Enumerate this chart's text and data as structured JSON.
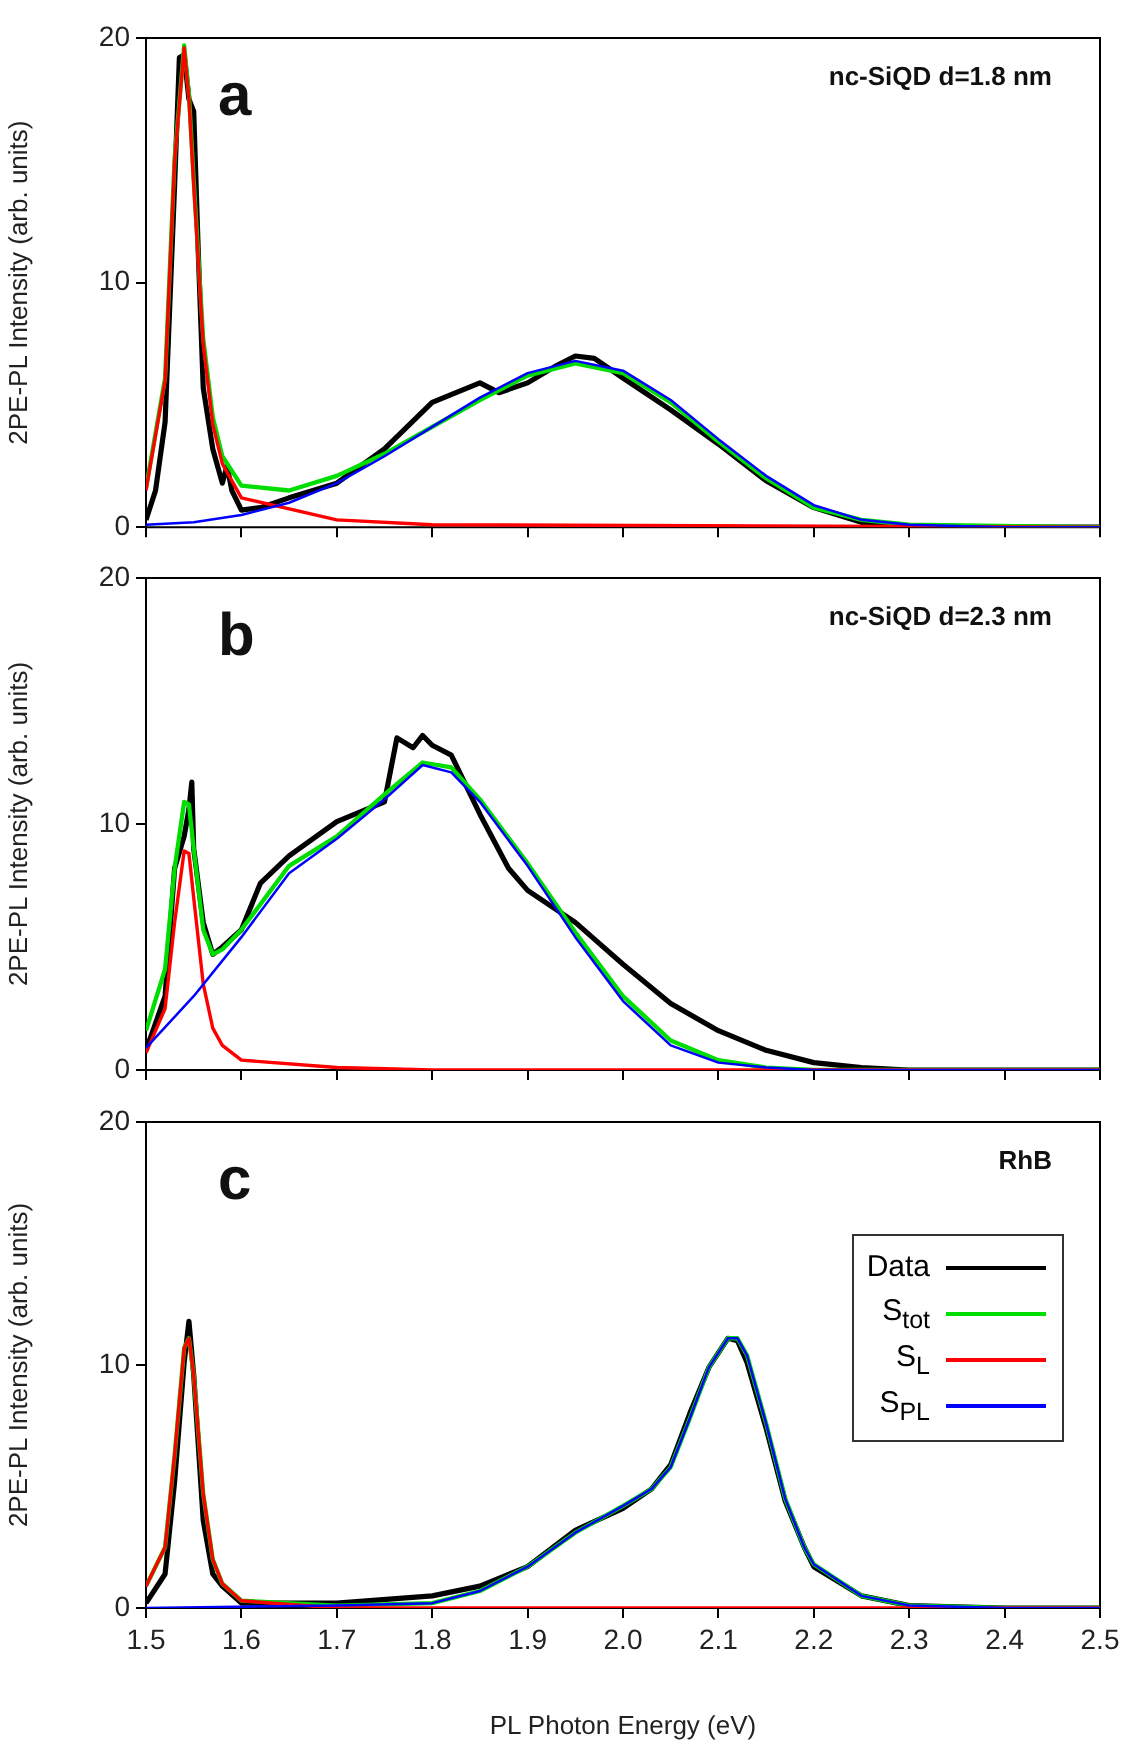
{
  "chart_data": [
    {
      "type": "line",
      "ylabel": "2PE-PL Intensity (arb. units)",
      "annotations": [
        "a",
        "nc-SiQD d=1.8 nm"
      ],
      "xlim": [
        1.5,
        2.5
      ],
      "ylim": [
        0,
        20
      ],
      "yticks": [
        0,
        10,
        20
      ],
      "xticks": [
        1.5,
        1.6,
        1.7,
        1.8,
        1.9,
        2,
        2.1,
        2.2,
        2.3,
        2.4,
        2.5
      ],
      "tick_labels": "y",
      "series": [
        {
          "color": "#000000",
          "x": [
            1.5,
            1.51,
            1.52,
            1.53,
            1.535,
            1.54,
            1.545,
            1.55,
            1.555,
            1.56,
            1.57,
            1.58,
            1.585,
            1.59,
            1.6,
            1.62,
            1.65,
            1.7,
            1.75,
            1.8,
            1.85,
            1.87,
            1.9,
            1.93,
            1.95,
            1.97,
            2.0,
            2.05,
            2.1,
            2.15,
            2.2,
            2.25,
            2.3,
            2.5
          ],
          "values": [
            0.3,
            1.5,
            4.3,
            14,
            19.2,
            19.3,
            17.5,
            17,
            11,
            5.7,
            3.2,
            1.8,
            2.5,
            1.5,
            0.7,
            0.8,
            1.2,
            1.8,
            3.2,
            5.1,
            5.9,
            5.5,
            5.9,
            6.6,
            7.0,
            6.9,
            6.1,
            4.8,
            3.4,
            1.9,
            0.8,
            0.2,
            0,
            0
          ]
        },
        {
          "color": "#00dd00",
          "x": [
            1.5,
            1.52,
            1.53,
            1.54,
            1.545,
            1.55,
            1.56,
            1.57,
            1.58,
            1.6,
            1.65,
            1.7,
            1.75,
            1.8,
            1.85,
            1.9,
            1.95,
            2.0,
            2.05,
            2.1,
            2.15,
            2.2,
            2.25,
            2.3,
            2.5
          ],
          "values": [
            1.6,
            6.1,
            15.1,
            19.7,
            17.7,
            14.2,
            7.7,
            4.5,
            2.9,
            1.7,
            1.5,
            2.1,
            3.0,
            4.1,
            5.2,
            6.2,
            6.7,
            6.3,
            5.1,
            3.5,
            2.0,
            0.8,
            0.3,
            0.1,
            0
          ]
        },
        {
          "color": "#ff0000",
          "x": [
            1.5,
            1.52,
            1.53,
            1.54,
            1.545,
            1.55,
            1.56,
            1.57,
            1.58,
            1.6,
            1.7,
            1.8,
            2.5
          ],
          "values": [
            1.5,
            6,
            15,
            19.6,
            17.5,
            14,
            7.5,
            4.2,
            2.6,
            1.2,
            0.3,
            0.1,
            0
          ]
        },
        {
          "color": "#0000ff",
          "x": [
            1.5,
            1.55,
            1.6,
            1.65,
            1.7,
            1.75,
            1.8,
            1.85,
            1.9,
            1.95,
            2.0,
            2.05,
            2.1,
            2.15,
            2.2,
            2.25,
            2.3,
            2.4,
            2.5
          ],
          "values": [
            0.1,
            0.2,
            0.5,
            1.0,
            1.8,
            2.9,
            4.1,
            5.3,
            6.3,
            6.8,
            6.4,
            5.2,
            3.6,
            2.1,
            0.9,
            0.3,
            0.1,
            0,
            0
          ]
        }
      ]
    },
    {
      "type": "line",
      "ylabel": "2PE-PL Intensity (arb. units)",
      "annotations": [
        "b",
        "nc-SiQD d=2.3 nm"
      ],
      "xlim": [
        1.5,
        2.5
      ],
      "ylim": [
        0,
        20
      ],
      "yticks": [
        0,
        10,
        20
      ],
      "xticks": [
        1.5,
        1.6,
        1.7,
        1.8,
        1.9,
        2,
        2.1,
        2.2,
        2.3,
        2.4,
        2.5
      ],
      "tick_labels": "y",
      "series": [
        {
          "color": "#000000",
          "x": [
            1.5,
            1.52,
            1.53,
            1.54,
            1.545,
            1.548,
            1.55,
            1.56,
            1.57,
            1.58,
            1.6,
            1.62,
            1.65,
            1.7,
            1.75,
            1.763,
            1.78,
            1.79,
            1.8,
            1.82,
            1.85,
            1.88,
            1.9,
            1.95,
            2.0,
            2.05,
            2.1,
            2.15,
            2.2,
            2.25,
            2.3,
            2.5
          ],
          "values": [
            0.8,
            3,
            8.2,
            9.5,
            10.6,
            11.7,
            9,
            6,
            4.7,
            5.0,
            5.7,
            7.6,
            8.7,
            10.1,
            10.9,
            13.5,
            13.1,
            13.6,
            13.2,
            12.8,
            10.4,
            8.2,
            7.3,
            6.0,
            4.3,
            2.7,
            1.6,
            0.8,
            0.3,
            0.1,
            0,
            0
          ]
        },
        {
          "color": "#00dd00",
          "x": [
            1.5,
            1.52,
            1.53,
            1.54,
            1.545,
            1.55,
            1.56,
            1.57,
            1.58,
            1.6,
            1.65,
            1.7,
            1.75,
            1.79,
            1.82,
            1.85,
            1.9,
            1.95,
            2.0,
            2.05,
            2.1,
            2.15,
            2.2,
            2.5
          ],
          "values": [
            1.6,
            4.1,
            8.2,
            10.9,
            10.8,
            9,
            5.7,
            4.7,
            4.9,
            5.7,
            8.3,
            9.5,
            11.2,
            12.5,
            12.3,
            11.0,
            8.4,
            5.6,
            3.0,
            1.2,
            0.4,
            0.1,
            0,
            0
          ]
        },
        {
          "color": "#ff0000",
          "x": [
            1.5,
            1.52,
            1.53,
            1.54,
            1.545,
            1.55,
            1.56,
            1.57,
            1.58,
            1.6,
            1.7,
            1.8,
            2.5
          ],
          "values": [
            0.7,
            2.5,
            6,
            8.9,
            8.8,
            7,
            3.5,
            1.7,
            1.0,
            0.4,
            0.1,
            0,
            0
          ]
        },
        {
          "color": "#0000ff",
          "x": [
            1.5,
            1.55,
            1.6,
            1.65,
            1.7,
            1.75,
            1.79,
            1.82,
            1.85,
            1.9,
            1.95,
            2.0,
            2.05,
            2.1,
            2.15,
            2.2,
            2.5
          ],
          "values": [
            0.9,
            3,
            5.4,
            8.0,
            9.4,
            11.0,
            12.4,
            12.1,
            10.9,
            8.3,
            5.4,
            2.8,
            1.0,
            0.3,
            0.1,
            0,
            0
          ]
        }
      ]
    },
    {
      "type": "line",
      "xlabel": "PL Photon Energy (eV)",
      "ylabel": "2PE-PL Intensity (arb. units)",
      "annotations": [
        "c",
        "RhB"
      ],
      "xlim": [
        1.5,
        2.5
      ],
      "ylim": [
        0,
        20
      ],
      "yticks": [
        0,
        10,
        20
      ],
      "xticks": [
        1.5,
        1.6,
        1.7,
        1.8,
        1.9,
        {
          "value": 2.0,
          "label": "2.0"
        },
        2.1,
        2.2,
        2.3,
        2.4,
        2.5
      ],
      "legend": "top right",
      "series": [
        {
          "name": "Data",
          "color": "#000000",
          "x": [
            1.5,
            1.52,
            1.53,
            1.54,
            1.545,
            1.55,
            1.56,
            1.57,
            1.58,
            1.6,
            1.7,
            1.8,
            1.85,
            1.9,
            1.95,
            2.0,
            2.03,
            2.05,
            2.07,
            2.09,
            2.11,
            2.12,
            2.13,
            2.15,
            2.17,
            2.19,
            2.2,
            2.25,
            2.3,
            2.4,
            2.5
          ],
          "values": [
            0.2,
            1.4,
            5.2,
            10.1,
            11.8,
            9.6,
            3.6,
            1.4,
            0.9,
            0.2,
            0.2,
            0.5,
            0.9,
            1.7,
            3.2,
            4.1,
            4.9,
            5.9,
            8.0,
            9.9,
            11.1,
            11.0,
            10.1,
            7.4,
            4.4,
            2.5,
            1.7,
            0.5,
            0.1,
            0,
            0
          ]
        },
        {
          "name": "S$_{tot}$",
          "color": "#00dd00",
          "x": [
            1.5,
            1.52,
            1.53,
            1.54,
            1.545,
            1.55,
            1.56,
            1.57,
            1.58,
            1.6,
            1.7,
            1.8,
            1.85,
            1.9,
            1.95,
            2.0,
            2.03,
            2.05,
            2.07,
            2.09,
            2.11,
            2.12,
            2.13,
            2.15,
            2.17,
            2.19,
            2.2,
            2.25,
            2.3,
            2.4,
            2.5
          ],
          "values": [
            0.9,
            2.5,
            6.3,
            10.7,
            11.1,
            9.6,
            4.7,
            2.0,
            1.0,
            0.3,
            0.1,
            0.2,
            0.7,
            1.7,
            3.1,
            4.2,
            4.9,
            5.8,
            7.8,
            9.9,
            11.1,
            11.1,
            10.4,
            7.6,
            4.5,
            2.5,
            1.8,
            0.5,
            0.1,
            0,
            0
          ]
        },
        {
          "name": "S$_{L}$",
          "color": "#ff0000",
          "x": [
            1.5,
            1.52,
            1.53,
            1.54,
            1.545,
            1.55,
            1.56,
            1.57,
            1.58,
            1.6,
            1.7,
            1.8,
            2.5
          ],
          "values": [
            0.9,
            2.5,
            6.3,
            10.7,
            11.1,
            9.6,
            4.7,
            2.0,
            1.0,
            0.3,
            0,
            0,
            0
          ]
        },
        {
          "name": "S$_{PL}$",
          "color": "#0000ff",
          "x": [
            1.5,
            1.7,
            1.8,
            1.85,
            1.9,
            1.95,
            2.0,
            2.03,
            2.05,
            2.07,
            2.09,
            2.11,
            2.12,
            2.13,
            2.15,
            2.17,
            2.19,
            2.2,
            2.25,
            2.3,
            2.4,
            2.5
          ],
          "values": [
            0,
            0.1,
            0.2,
            0.7,
            1.7,
            3.1,
            4.2,
            4.9,
            5.8,
            7.8,
            9.9,
            11.1,
            11.1,
            10.4,
            7.6,
            4.5,
            2.5,
            1.8,
            0.5,
            0.1,
            0,
            0
          ]
        }
      ]
    }
  ]
}
